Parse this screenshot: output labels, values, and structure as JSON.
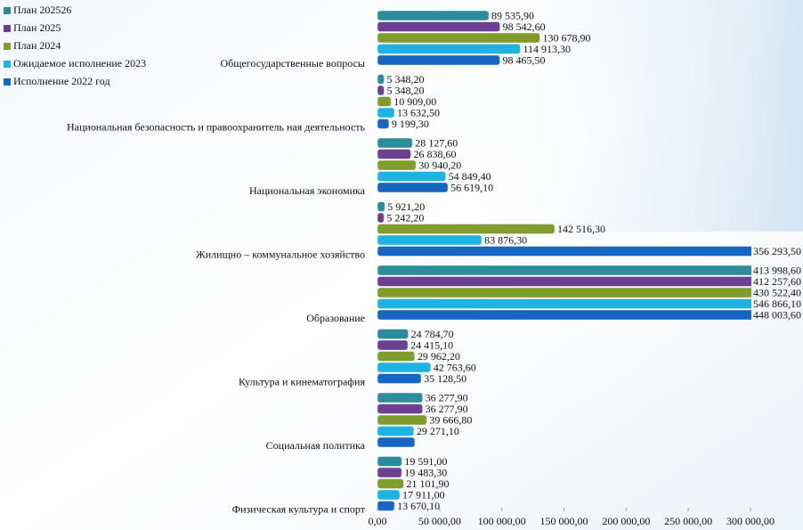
{
  "chart_data": {
    "type": "barh",
    "categories": [
      "Общегосударственные вопросы",
      "Национальная безопасность и правоохранитель ная деятельность",
      "Национальная экономика",
      "Жилищно – коммунальное хозяйство",
      "Образование",
      "Культура и кинематография",
      "Социальная политика",
      "Физическая культура и спорт"
    ],
    "series": [
      {
        "name": "План 202526",
        "color": "#2b8d9b",
        "values": [
          89535.9,
          5348.2,
          28127.6,
          5921.2,
          413998.6,
          24784.7,
          36277.9,
          19591.0
        ],
        "value_labels": [
          "89 535,90",
          "5 348,20",
          "28 127,60",
          "5 921,20",
          "413 998,60",
          "24 784,70",
          "36 277,90",
          "19 591,00"
        ]
      },
      {
        "name": "План 2025",
        "color": "#6b3f91",
        "values": [
          98542.6,
          5348.2,
          26838.6,
          5242.2,
          412257.6,
          24415.1,
          36277.9,
          19483.3
        ],
        "value_labels": [
          "98 542,60",
          "5 348,20",
          "26 838,60",
          "5 242,20",
          "412 257,60",
          "24 415,10",
          "36 277,90",
          "19 483,30"
        ]
      },
      {
        "name": "План 2024",
        "color": "#809c2c",
        "values": [
          130678.9,
          10909.0,
          30940.2,
          142516.3,
          430522.4,
          29962.2,
          39666.8,
          21101.9
        ],
        "value_labels": [
          "130 678,90",
          "10 909,00",
          "30 940,20",
          "142 516,30",
          "430 522,40",
          "29 962,20",
          "39 666,80",
          "21 101,90"
        ]
      },
      {
        "name": "Ожидаемое исполнение 2023",
        "color": "#1db4e3",
        "values": [
          114913.3,
          13632.5,
          54849.4,
          83876.3,
          546866.1,
          42763.6,
          29271.1,
          17911.0
        ],
        "value_labels": [
          "114 913,30",
          "13 632,50",
          "54 849,40",
          "83 876,30",
          "546 866,10",
          "42 763,60",
          "29 271,10",
          "17 911,00"
        ]
      },
      {
        "name": "Исполнение 2022 год",
        "color": "#1767c2",
        "values": [
          98465.5,
          9199.3,
          56619.1,
          356293.5,
          448003.6,
          35128.5,
          30000,
          13670.1
        ],
        "value_labels": [
          "98 465,50",
          "9 199,30",
          "56 619,10",
          "356 293,50",
          "448 003,60",
          "35 128,50",
          null,
          "13 670,10"
        ]
      }
    ],
    "xlim": [
      0,
      300000
    ],
    "xticks": [
      {
        "value": 0,
        "label": "0,00"
      },
      {
        "value": 50000,
        "label": "50 000,00"
      },
      {
        "value": 100000,
        "label": "100 000,00"
      },
      {
        "value": 150000,
        "label": "150 000,00"
      },
      {
        "value": 200000,
        "label": "200 000,00"
      },
      {
        "value": 250000,
        "label": "250 000,00"
      },
      {
        "value": 300000,
        "label": "300 000,00"
      }
    ],
    "legend": "top-left"
  }
}
